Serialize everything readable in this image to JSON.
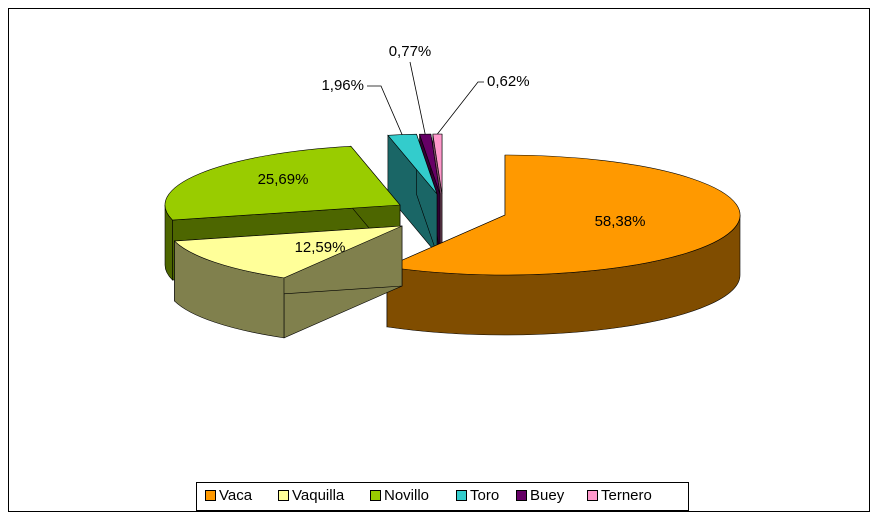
{
  "chart_data": {
    "type": "pie",
    "categories": [
      "Vaca",
      "Vaquilla",
      "Novillo",
      "Toro",
      "Buey",
      "Ternero"
    ],
    "values": [
      58.38,
      12.59,
      25.69,
      1.96,
      0.77,
      0.62
    ],
    "value_labels": [
      "58,38%",
      "12,59%",
      "25,69%",
      "1,96%",
      "0,77%",
      "0,62%"
    ],
    "colors": [
      "#FF9900",
      "#FFFF99",
      "#99CC00",
      "#33CCCC",
      "#660066",
      "#FF99CC"
    ],
    "legend": "bottom"
  }
}
